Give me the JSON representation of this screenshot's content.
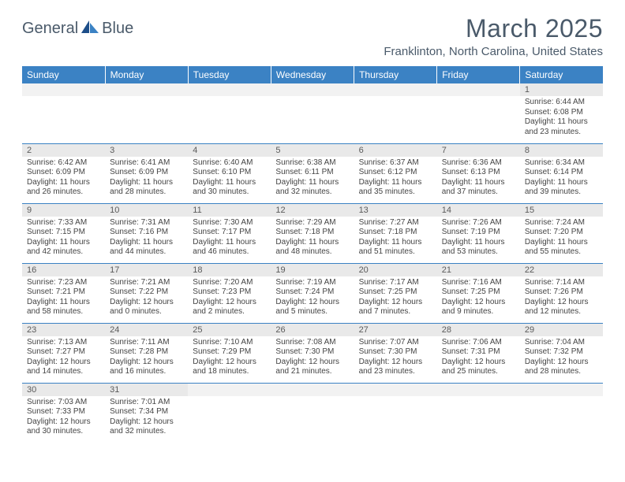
{
  "brand": {
    "name1": "General",
    "name2": "Blue"
  },
  "title": "March 2025",
  "location": "Franklinton, North Carolina, United States",
  "colors": {
    "header_bg": "#3b82c4",
    "header_text": "#ffffff",
    "daynum_bg": "#e9e9e9",
    "row_border": "#3b82c4",
    "text": "#4a5a6a"
  },
  "day_labels": [
    "Sunday",
    "Monday",
    "Tuesday",
    "Wednesday",
    "Thursday",
    "Friday",
    "Saturday"
  ],
  "weeks": [
    [
      null,
      null,
      null,
      null,
      null,
      null,
      {
        "n": "1",
        "sr": "Sunrise: 6:44 AM",
        "ss": "Sunset: 6:08 PM",
        "d1": "Daylight: 11 hours",
        "d2": "and 23 minutes."
      }
    ],
    [
      {
        "n": "2",
        "sr": "Sunrise: 6:42 AM",
        "ss": "Sunset: 6:09 PM",
        "d1": "Daylight: 11 hours",
        "d2": "and 26 minutes."
      },
      {
        "n": "3",
        "sr": "Sunrise: 6:41 AM",
        "ss": "Sunset: 6:09 PM",
        "d1": "Daylight: 11 hours",
        "d2": "and 28 minutes."
      },
      {
        "n": "4",
        "sr": "Sunrise: 6:40 AM",
        "ss": "Sunset: 6:10 PM",
        "d1": "Daylight: 11 hours",
        "d2": "and 30 minutes."
      },
      {
        "n": "5",
        "sr": "Sunrise: 6:38 AM",
        "ss": "Sunset: 6:11 PM",
        "d1": "Daylight: 11 hours",
        "d2": "and 32 minutes."
      },
      {
        "n": "6",
        "sr": "Sunrise: 6:37 AM",
        "ss": "Sunset: 6:12 PM",
        "d1": "Daylight: 11 hours",
        "d2": "and 35 minutes."
      },
      {
        "n": "7",
        "sr": "Sunrise: 6:36 AM",
        "ss": "Sunset: 6:13 PM",
        "d1": "Daylight: 11 hours",
        "d2": "and 37 minutes."
      },
      {
        "n": "8",
        "sr": "Sunrise: 6:34 AM",
        "ss": "Sunset: 6:14 PM",
        "d1": "Daylight: 11 hours",
        "d2": "and 39 minutes."
      }
    ],
    [
      {
        "n": "9",
        "sr": "Sunrise: 7:33 AM",
        "ss": "Sunset: 7:15 PM",
        "d1": "Daylight: 11 hours",
        "d2": "and 42 minutes."
      },
      {
        "n": "10",
        "sr": "Sunrise: 7:31 AM",
        "ss": "Sunset: 7:16 PM",
        "d1": "Daylight: 11 hours",
        "d2": "and 44 minutes."
      },
      {
        "n": "11",
        "sr": "Sunrise: 7:30 AM",
        "ss": "Sunset: 7:17 PM",
        "d1": "Daylight: 11 hours",
        "d2": "and 46 minutes."
      },
      {
        "n": "12",
        "sr": "Sunrise: 7:29 AM",
        "ss": "Sunset: 7:18 PM",
        "d1": "Daylight: 11 hours",
        "d2": "and 48 minutes."
      },
      {
        "n": "13",
        "sr": "Sunrise: 7:27 AM",
        "ss": "Sunset: 7:18 PM",
        "d1": "Daylight: 11 hours",
        "d2": "and 51 minutes."
      },
      {
        "n": "14",
        "sr": "Sunrise: 7:26 AM",
        "ss": "Sunset: 7:19 PM",
        "d1": "Daylight: 11 hours",
        "d2": "and 53 minutes."
      },
      {
        "n": "15",
        "sr": "Sunrise: 7:24 AM",
        "ss": "Sunset: 7:20 PM",
        "d1": "Daylight: 11 hours",
        "d2": "and 55 minutes."
      }
    ],
    [
      {
        "n": "16",
        "sr": "Sunrise: 7:23 AM",
        "ss": "Sunset: 7:21 PM",
        "d1": "Daylight: 11 hours",
        "d2": "and 58 minutes."
      },
      {
        "n": "17",
        "sr": "Sunrise: 7:21 AM",
        "ss": "Sunset: 7:22 PM",
        "d1": "Daylight: 12 hours",
        "d2": "and 0 minutes."
      },
      {
        "n": "18",
        "sr": "Sunrise: 7:20 AM",
        "ss": "Sunset: 7:23 PM",
        "d1": "Daylight: 12 hours",
        "d2": "and 2 minutes."
      },
      {
        "n": "19",
        "sr": "Sunrise: 7:19 AM",
        "ss": "Sunset: 7:24 PM",
        "d1": "Daylight: 12 hours",
        "d2": "and 5 minutes."
      },
      {
        "n": "20",
        "sr": "Sunrise: 7:17 AM",
        "ss": "Sunset: 7:25 PM",
        "d1": "Daylight: 12 hours",
        "d2": "and 7 minutes."
      },
      {
        "n": "21",
        "sr": "Sunrise: 7:16 AM",
        "ss": "Sunset: 7:25 PM",
        "d1": "Daylight: 12 hours",
        "d2": "and 9 minutes."
      },
      {
        "n": "22",
        "sr": "Sunrise: 7:14 AM",
        "ss": "Sunset: 7:26 PM",
        "d1": "Daylight: 12 hours",
        "d2": "and 12 minutes."
      }
    ],
    [
      {
        "n": "23",
        "sr": "Sunrise: 7:13 AM",
        "ss": "Sunset: 7:27 PM",
        "d1": "Daylight: 12 hours",
        "d2": "and 14 minutes."
      },
      {
        "n": "24",
        "sr": "Sunrise: 7:11 AM",
        "ss": "Sunset: 7:28 PM",
        "d1": "Daylight: 12 hours",
        "d2": "and 16 minutes."
      },
      {
        "n": "25",
        "sr": "Sunrise: 7:10 AM",
        "ss": "Sunset: 7:29 PM",
        "d1": "Daylight: 12 hours",
        "d2": "and 18 minutes."
      },
      {
        "n": "26",
        "sr": "Sunrise: 7:08 AM",
        "ss": "Sunset: 7:30 PM",
        "d1": "Daylight: 12 hours",
        "d2": "and 21 minutes."
      },
      {
        "n": "27",
        "sr": "Sunrise: 7:07 AM",
        "ss": "Sunset: 7:30 PM",
        "d1": "Daylight: 12 hours",
        "d2": "and 23 minutes."
      },
      {
        "n": "28",
        "sr": "Sunrise: 7:06 AM",
        "ss": "Sunset: 7:31 PM",
        "d1": "Daylight: 12 hours",
        "d2": "and 25 minutes."
      },
      {
        "n": "29",
        "sr": "Sunrise: 7:04 AM",
        "ss": "Sunset: 7:32 PM",
        "d1": "Daylight: 12 hours",
        "d2": "and 28 minutes."
      }
    ],
    [
      {
        "n": "30",
        "sr": "Sunrise: 7:03 AM",
        "ss": "Sunset: 7:33 PM",
        "d1": "Daylight: 12 hours",
        "d2": "and 30 minutes."
      },
      {
        "n": "31",
        "sr": "Sunrise: 7:01 AM",
        "ss": "Sunset: 7:34 PM",
        "d1": "Daylight: 12 hours",
        "d2": "and 32 minutes."
      },
      null,
      null,
      null,
      null,
      null
    ]
  ]
}
